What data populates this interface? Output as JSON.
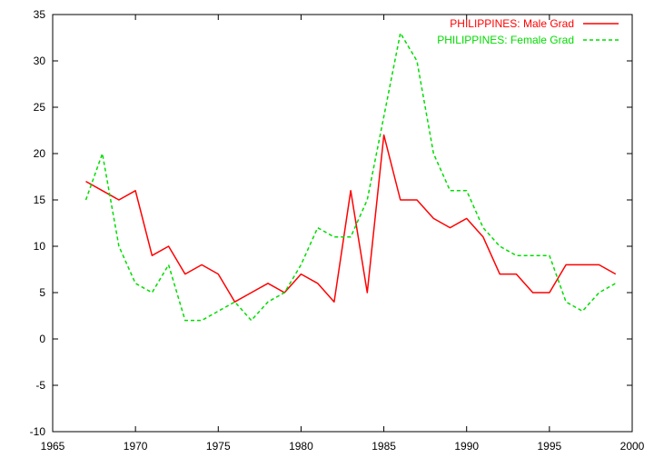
{
  "chart_data": {
    "type": "line",
    "title": "",
    "xlabel": "",
    "ylabel": "",
    "xlim": [
      1965,
      2000
    ],
    "ylim": [
      -10,
      35
    ],
    "xticks": [
      1965,
      1970,
      1975,
      1980,
      1985,
      1990,
      1995,
      2000
    ],
    "yticks": [
      -10,
      -5,
      0,
      5,
      10,
      15,
      20,
      25,
      30,
      35
    ],
    "grid": false,
    "legend_position": "top-right",
    "x": [
      1967,
      1968,
      1969,
      1970,
      1971,
      1972,
      1973,
      1974,
      1975,
      1976,
      1977,
      1978,
      1979,
      1980,
      1981,
      1982,
      1983,
      1984,
      1985,
      1986,
      1987,
      1988,
      1989,
      1990,
      1991,
      1992,
      1993,
      1994,
      1995,
      1996,
      1997,
      1998,
      1999
    ],
    "series": [
      {
        "name": "PHILIPPINES: Male Grad",
        "color": "#ff0000",
        "dash": "solid",
        "values": [
          17,
          16,
          15,
          16,
          9,
          10,
          7,
          8,
          7,
          4,
          5,
          6,
          5,
          7,
          6,
          4,
          16,
          5,
          22,
          15,
          15,
          13,
          12,
          13,
          11,
          7,
          7,
          5,
          5,
          8,
          8,
          8,
          7
        ]
      },
      {
        "name": "PHILIPPINES: Female Grad",
        "color": "#00dd00",
        "dash": "dashed",
        "values": [
          15,
          20,
          10,
          6,
          5,
          8,
          2,
          2,
          3,
          4,
          2,
          4,
          5,
          8,
          12,
          11,
          11,
          15,
          24,
          33,
          30,
          20,
          16,
          16,
          12,
          10,
          9,
          9,
          9,
          4,
          3,
          5,
          6
        ]
      }
    ]
  }
}
